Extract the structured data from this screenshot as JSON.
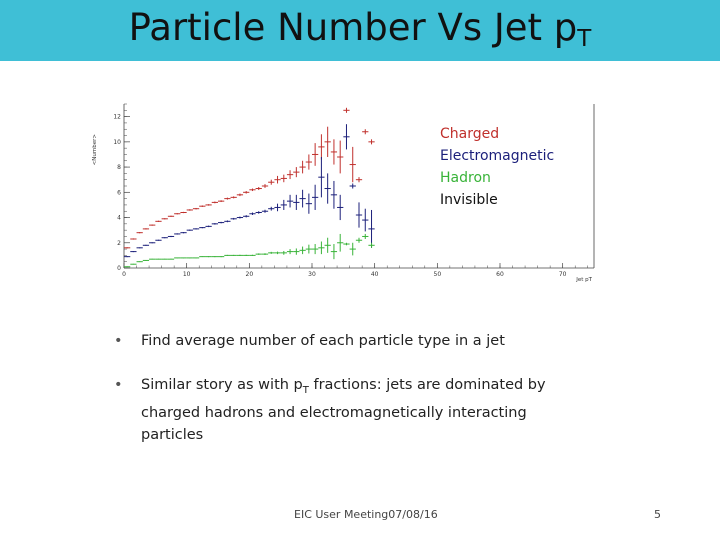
{
  "slide": {
    "title_main": "Particle Number Vs Jet p",
    "title_sub": "T",
    "bullets": [
      {
        "text": "Find average number of each particle type in a jet"
      },
      {
        "text_before": "Similar story as with p",
        "sub": "T",
        "text_after": " fractions: jets are dominated by charged hadrons and electromagnetically interacting particles"
      }
    ],
    "footer": "EIC User Meeting07/08/16",
    "page_number": "5",
    "bullet_glyph": "•",
    "colors": {
      "title_bar": "#3fbfd6"
    }
  },
  "chart_data": {
    "type": "scatter",
    "title": "",
    "xlabel": "Jet pT",
    "ylabel": "<Number>",
    "xlim": [
      0,
      75
    ],
    "ylim": [
      0,
      13
    ],
    "xticks": [
      0,
      10,
      20,
      30,
      40,
      50,
      60,
      70
    ],
    "yticks": [
      0,
      2,
      4,
      6,
      8,
      10,
      12
    ],
    "grid": false,
    "legend_position": "top-right",
    "series": [
      {
        "name": "Charged",
        "color": "#c0302c",
        "x": [
          0.5,
          1.5,
          2.5,
          3.5,
          4.5,
          5.5,
          6.5,
          7.5,
          8.5,
          9.5,
          10.5,
          11.5,
          12.5,
          13.5,
          14.5,
          15.5,
          16.5,
          17.5,
          18.5,
          19.5,
          20.5,
          21.5,
          22.5,
          23.5,
          24.5,
          25.5,
          26.5,
          27.5,
          28.5,
          29.5,
          30.5,
          31.5,
          32.5,
          33.5,
          34.5,
          35.5,
          36.5,
          37.5,
          38.5,
          39.5
        ],
        "y": [
          1.6,
          2.3,
          2.8,
          3.1,
          3.4,
          3.7,
          3.9,
          4.1,
          4.3,
          4.4,
          4.6,
          4.7,
          4.9,
          5.0,
          5.2,
          5.3,
          5.5,
          5.6,
          5.8,
          6.0,
          6.2,
          6.3,
          6.5,
          6.8,
          7.0,
          7.1,
          7.4,
          7.6,
          8.0,
          8.4,
          9.0,
          9.6,
          10.0,
          9.2,
          8.8,
          12.5,
          8.2,
          7.0,
          10.8,
          10.0
        ],
        "yerr": [
          0.05,
          0.05,
          0.05,
          0.05,
          0.05,
          0.05,
          0.05,
          0.05,
          0.05,
          0.05,
          0.06,
          0.06,
          0.06,
          0.06,
          0.07,
          0.07,
          0.08,
          0.08,
          0.1,
          0.1,
          0.1,
          0.12,
          0.15,
          0.2,
          0.3,
          0.3,
          0.35,
          0.4,
          0.5,
          0.6,
          0.9,
          1.0,
          1.2,
          1.0,
          1.3,
          0.2,
          1.4,
          0.2,
          0.2,
          0.2
        ]
      },
      {
        "name": "Electromagnetic",
        "color": "#1b1f7a",
        "x": [
          0.5,
          1.5,
          2.5,
          3.5,
          4.5,
          5.5,
          6.5,
          7.5,
          8.5,
          9.5,
          10.5,
          11.5,
          12.5,
          13.5,
          14.5,
          15.5,
          16.5,
          17.5,
          18.5,
          19.5,
          20.5,
          21.5,
          22.5,
          23.5,
          24.5,
          25.5,
          26.5,
          27.5,
          28.5,
          29.5,
          30.5,
          31.5,
          32.5,
          33.5,
          34.5,
          35.5,
          36.5,
          37.5,
          38.5,
          39.5
        ],
        "y": [
          0.9,
          1.3,
          1.6,
          1.8,
          2.0,
          2.2,
          2.4,
          2.5,
          2.7,
          2.8,
          3.0,
          3.1,
          3.2,
          3.3,
          3.5,
          3.6,
          3.7,
          3.9,
          4.0,
          4.1,
          4.3,
          4.4,
          4.5,
          4.7,
          4.8,
          5.0,
          5.3,
          5.2,
          5.5,
          5.1,
          5.6,
          7.2,
          6.3,
          5.8,
          4.8,
          10.4,
          6.5,
          4.2,
          3.8,
          3.1
        ],
        "yerr": [
          0.04,
          0.04,
          0.04,
          0.04,
          0.04,
          0.04,
          0.04,
          0.05,
          0.05,
          0.05,
          0.05,
          0.05,
          0.05,
          0.06,
          0.06,
          0.06,
          0.07,
          0.07,
          0.08,
          0.09,
          0.1,
          0.1,
          0.12,
          0.15,
          0.3,
          0.4,
          0.5,
          0.6,
          0.7,
          0.8,
          1.0,
          1.6,
          1.2,
          1.1,
          1.0,
          1.0,
          0.2,
          1.0,
          0.9,
          1.5
        ]
      },
      {
        "name": "Hadron",
        "color": "#38b338",
        "x": [
          0.5,
          1.5,
          2.5,
          3.5,
          4.5,
          5.5,
          6.5,
          7.5,
          8.5,
          9.5,
          10.5,
          11.5,
          12.5,
          13.5,
          14.5,
          15.5,
          16.5,
          17.5,
          18.5,
          19.5,
          20.5,
          21.5,
          22.5,
          23.5,
          24.5,
          25.5,
          26.5,
          27.5,
          28.5,
          29.5,
          30.5,
          31.5,
          32.5,
          33.5,
          34.5,
          35.5,
          36.5,
          37.5,
          38.5,
          39.5
        ],
        "y": [
          0.1,
          0.3,
          0.5,
          0.6,
          0.7,
          0.7,
          0.7,
          0.7,
          0.8,
          0.8,
          0.8,
          0.8,
          0.9,
          0.9,
          0.9,
          0.9,
          1.0,
          1.0,
          1.0,
          1.0,
          1.0,
          1.1,
          1.1,
          1.2,
          1.2,
          1.2,
          1.3,
          1.3,
          1.4,
          1.5,
          1.5,
          1.6,
          1.8,
          1.3,
          2.0,
          1.9,
          1.5,
          2.2,
          2.5,
          1.8
        ],
        "yerr": [
          0.03,
          0.03,
          0.03,
          0.03,
          0.03,
          0.03,
          0.03,
          0.03,
          0.03,
          0.03,
          0.03,
          0.03,
          0.03,
          0.04,
          0.04,
          0.04,
          0.04,
          0.04,
          0.05,
          0.05,
          0.05,
          0.06,
          0.07,
          0.08,
          0.1,
          0.15,
          0.2,
          0.25,
          0.3,
          0.35,
          0.4,
          0.5,
          0.6,
          0.6,
          0.7,
          0.1,
          0.5,
          0.2,
          0.2,
          0.2
        ]
      },
      {
        "name": "Invisible",
        "color": "#111111",
        "x": [],
        "y": [],
        "yerr": []
      }
    ]
  }
}
